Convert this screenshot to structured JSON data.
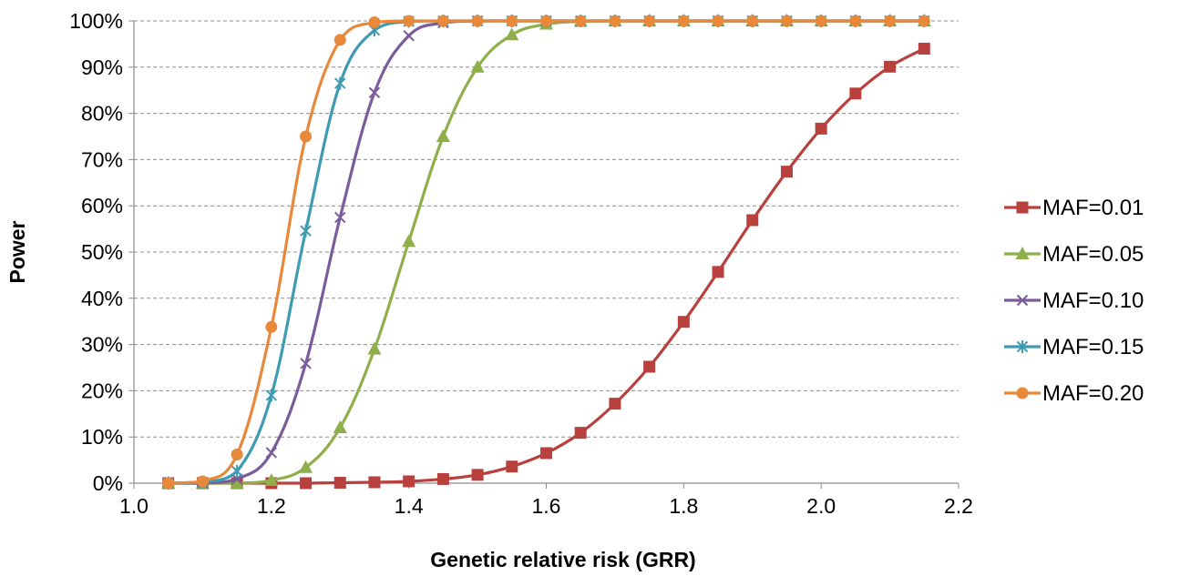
{
  "chart_data": {
    "type": "line",
    "title": "",
    "xlabel": "Genetic relative risk (GRR)",
    "ylabel": "Power",
    "xlim": [
      1.0,
      2.2
    ],
    "ylim": [
      0,
      100
    ],
    "x_ticks": [
      "1.0",
      "1.2",
      "1.4",
      "1.6",
      "1.8",
      "2.0",
      "2.2"
    ],
    "y_ticks": [
      "0%",
      "10%",
      "20%",
      "30%",
      "40%",
      "50%",
      "60%",
      "70%",
      "80%",
      "90%",
      "100%"
    ],
    "grid": "horizontal dashed",
    "legend_position": "right",
    "x": [
      1.05,
      1.1,
      1.15,
      1.2,
      1.25,
      1.3,
      1.35,
      1.4,
      1.45,
      1.5,
      1.55,
      1.6,
      1.65,
      1.7,
      1.75,
      1.8,
      1.85,
      1.9,
      1.95,
      2.0,
      2.05,
      2.1,
      2.15
    ],
    "series": [
      {
        "name": "MAF=0.01",
        "color": "#b9413d",
        "marker": "square",
        "values": [
          0,
          0,
          0,
          0,
          0,
          0.1,
          0.2,
          0.4,
          0.9,
          1.8,
          3.6,
          6.5,
          10.9,
          17.2,
          25.2,
          34.9,
          45.7,
          56.9,
          67.4,
          76.7,
          84.3,
          90.1,
          94.0
        ]
      },
      {
        "name": "MAF=0.05",
        "color": "#8faf4a",
        "marker": "triangle",
        "values": [
          0,
          0,
          0,
          0.6,
          3.4,
          12.0,
          29.0,
          52.3,
          75.0,
          90.0,
          97.0,
          99.3,
          99.9,
          100,
          100,
          100,
          100,
          100,
          100,
          100,
          100,
          100,
          100
        ]
      },
      {
        "name": "MAF=0.10",
        "color": "#7a5c9a",
        "marker": "x",
        "values": [
          0,
          0,
          0.9,
          6.6,
          25.9,
          57.5,
          84.5,
          96.8,
          99.6,
          100,
          100,
          100,
          100,
          100,
          100,
          100,
          100,
          100,
          100,
          100,
          100,
          100,
          100
        ]
      },
      {
        "name": "MAF=0.15",
        "color": "#3f9bb3",
        "marker": "asterisk",
        "values": [
          0,
          0.2,
          2.6,
          19.0,
          54.6,
          86.5,
          98.0,
          99.9,
          100,
          100,
          100,
          100,
          100,
          100,
          100,
          100,
          100,
          100,
          100,
          100,
          100,
          100,
          100
        ]
      },
      {
        "name": "MAF=0.20",
        "color": "#e8883a",
        "marker": "circle",
        "values": [
          0,
          0.4,
          6.2,
          33.8,
          75.0,
          95.9,
          99.7,
          100,
          100,
          100,
          100,
          100,
          100,
          100,
          100,
          100,
          100,
          100,
          100,
          100,
          100,
          100,
          100
        ]
      }
    ]
  }
}
